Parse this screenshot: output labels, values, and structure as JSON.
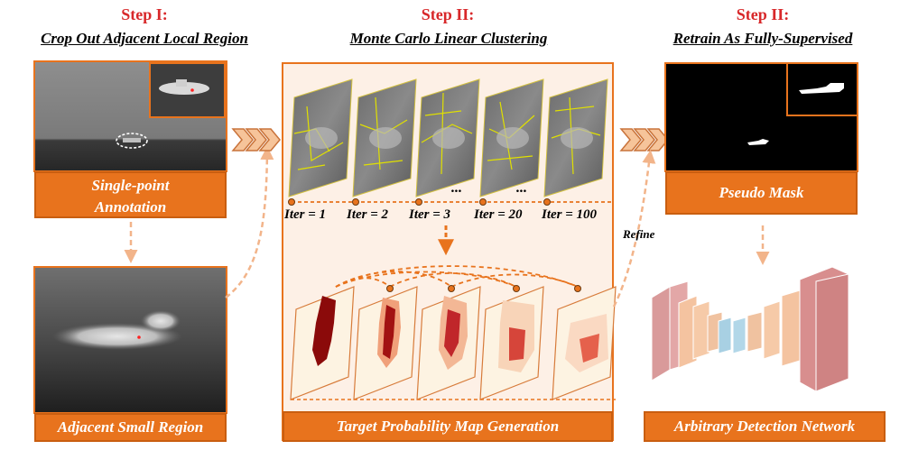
{
  "steps": [
    {
      "step": "Step I:",
      "title": "Crop Out Adjacent Local Region"
    },
    {
      "step": "Step II:",
      "title": "Monte Carlo Linear Clustering"
    },
    {
      "step": "Step II:",
      "title": "Retrain As Fully-Supervised"
    }
  ],
  "labels": {
    "single_point_line1": "Single-point",
    "single_point_line2": "Annotation",
    "adjacent_region": "Adjacent Small Region",
    "pseudo_mask": "Pseudo Mask",
    "target_prob": "Target Probability Map Generation",
    "arbitrary_network": "Arbitrary Detection Network",
    "refine": "Refine",
    "ellipsis": "..."
  },
  "iterations": [
    "Iter = 1",
    "Iter = 2",
    "Iter = 3",
    "Iter = 20",
    "Iter = 100"
  ],
  "colors": {
    "accent_orange": "#e8731d",
    "step_red": "#d8282a",
    "dashed_arrow": "#f2b48a",
    "panel_bg": "#fdf0e6"
  }
}
